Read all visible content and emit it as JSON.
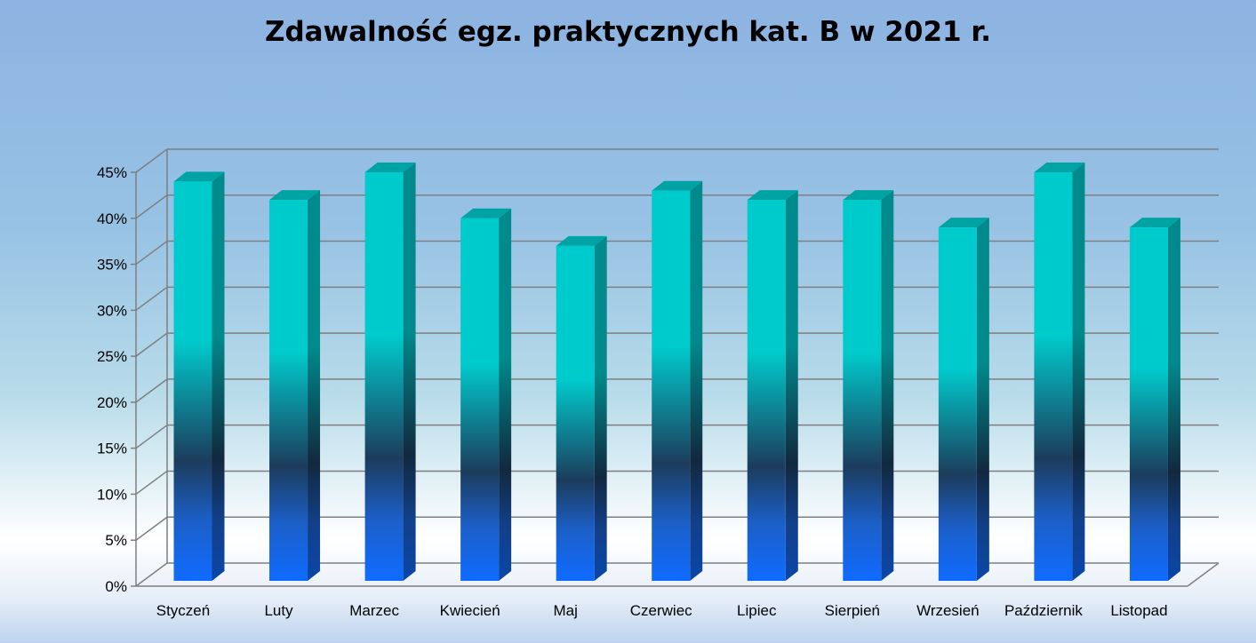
{
  "chart_data": {
    "type": "bar",
    "title": "Zdawalność egz. praktycznych kat. B w 2021 r.",
    "xlabel": "",
    "ylabel": "",
    "categories": [
      "Styczeń",
      "Luty",
      "Marzec",
      "Kwiecień",
      "Maj",
      "Czerwiec",
      "Lipiec",
      "Sierpień",
      "Wrzesień",
      "Październik",
      "Listopad"
    ],
    "values": [
      44,
      42,
      45,
      40,
      37,
      43,
      42,
      42,
      39,
      45,
      39
    ],
    "value_unit": "%",
    "ylim": [
      0,
      45
    ],
    "yticks": [
      "0%",
      "5%",
      "10%",
      "15%",
      "20%",
      "25%",
      "30%",
      "35%",
      "40%",
      "45%"
    ],
    "grid": true,
    "legend": "none",
    "three_d": true,
    "colors": {
      "bar_top": "#00cbcc",
      "bar_mid": "#1c3c5c",
      "bar_bottom": "#0f6bff",
      "grid": "#7f7f7f"
    }
  }
}
